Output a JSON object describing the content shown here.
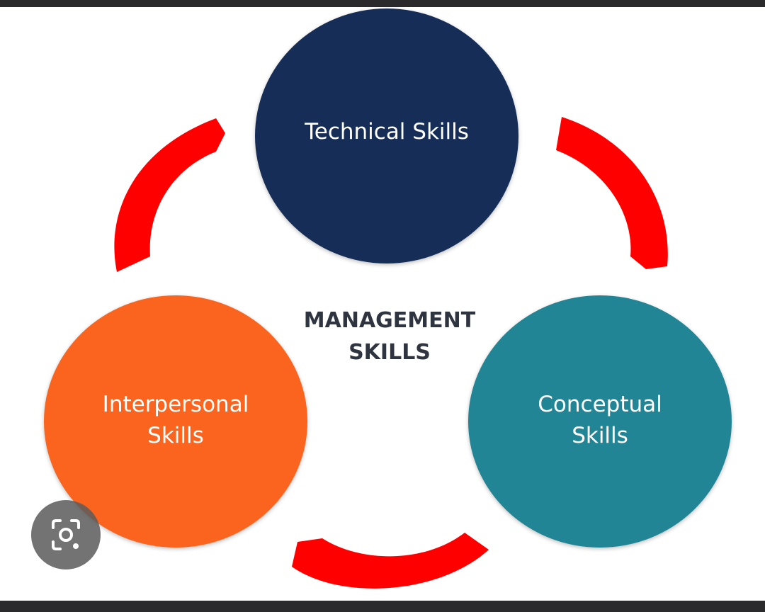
{
  "diagram": {
    "center_label": "MANAGEMENT\nSKILLS",
    "nodes": [
      {
        "id": "technical",
        "label": "Technical Skills",
        "color": "#162e57"
      },
      {
        "id": "interpersonal",
        "label": "Interpersonal\nSkills",
        "color": "#fa641e"
      },
      {
        "id": "conceptual",
        "label": "Conceptual\nSkills",
        "color": "#218596"
      }
    ],
    "connector_color": "#ff0000"
  },
  "overlay": {
    "lens_icon": "camera-search-icon"
  },
  "colors": {
    "frame": "#2a2a2c",
    "background": "#ffffff",
    "center_text": "#2e3440"
  }
}
